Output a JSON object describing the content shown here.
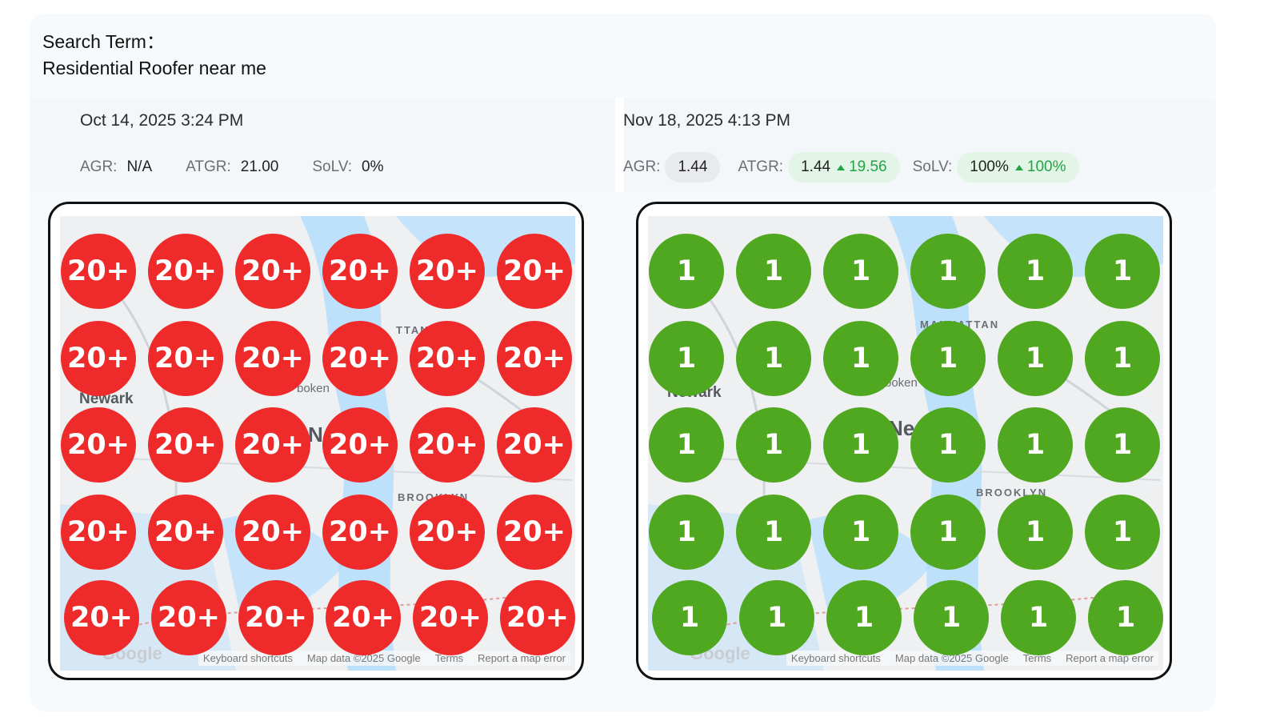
{
  "search": {
    "label": "Search Term：",
    "term": "Residential Roofer near me"
  },
  "scans": [
    {
      "date": "Oct 14, 2025 3:24 PM",
      "agr_label": "AGR:",
      "agr": "N/A",
      "atgr_label": "ATGR:",
      "atgr": "21.00",
      "solv_label": "SoLV:",
      "solv": "0%",
      "pin_color": "#ee2a2a",
      "grid": [
        [
          "20+",
          "20+",
          "20+",
          "20+",
          "20+",
          "20+"
        ],
        [
          "20+",
          "20+",
          "20+",
          "20+",
          "20+",
          "20+"
        ],
        [
          "20+",
          "20+",
          "20+",
          "20+",
          "20+",
          "20+"
        ],
        [
          "20+",
          "20+",
          "20+",
          "20+",
          "20+",
          "20+"
        ],
        [
          "20+",
          "20+",
          "20+",
          "20+",
          "20+",
          "20+"
        ]
      ],
      "map_labels": {
        "manhattan": "TTAN",
        "newark": "Newark",
        "hoboken": "boken",
        "brooklyn": "BROOKLYN",
        "ny": "Ne"
      }
    },
    {
      "date": "Nov 18, 2025 4:13 PM",
      "agr_label": "AGR:",
      "agr": "1.44",
      "atgr_label": "ATGR:",
      "atgr": "1.44",
      "atgr_delta": "19.56",
      "solv_label": "SoLV:",
      "solv": "100%",
      "solv_delta": "100%",
      "pin_color": "#4fa81f",
      "grid": [
        [
          "1",
          "1",
          "1",
          "1",
          "1",
          "1"
        ],
        [
          "1",
          "1",
          "1",
          "1",
          "1",
          "1"
        ],
        [
          "1",
          "1",
          "1",
          "1",
          "1",
          "1"
        ],
        [
          "1",
          "1",
          "1",
          "1",
          "1",
          "1"
        ],
        [
          "1",
          "1",
          "1",
          "1",
          "1",
          "1"
        ]
      ],
      "map_labels": {
        "manhattan": "MANHATTAN",
        "newark": "Newark",
        "hoboken": "boken",
        "brooklyn": "BROOKLYN",
        "ny": "Ne"
      }
    }
  ],
  "map_footer": {
    "keyboard": "Keyboard shortcuts",
    "mapdata": "Map data ©2025 Google",
    "terms": "Terms",
    "report": "Report a map error",
    "logo": "Google"
  }
}
